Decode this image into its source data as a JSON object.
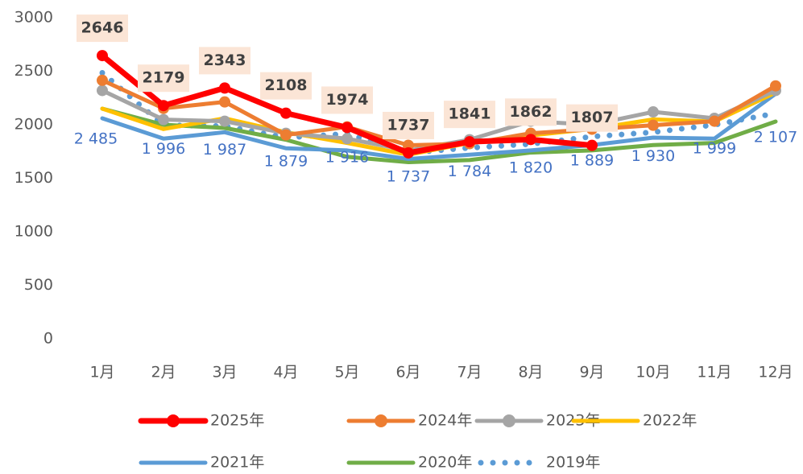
{
  "chart_data": {
    "type": "line",
    "categories": [
      "1月",
      "2月",
      "3月",
      "4月",
      "5月",
      "6月",
      "7月",
      "8月",
      "9月",
      "10月",
      "11月",
      "12月"
    ],
    "ylim": [
      0,
      3000
    ],
    "yticks": [
      0,
      500,
      1000,
      1500,
      2000,
      2500,
      3000
    ],
    "grid": false,
    "legend": "bottom",
    "series": [
      {
        "name": "2025年",
        "color": "#ff0000",
        "marker": true,
        "values": [
          2646,
          2179,
          2343,
          2108,
          1974,
          1737,
          1841,
          1862,
          1807,
          null,
          null,
          null
        ]
      },
      {
        "name": "2024年",
        "color": "#ed7d31",
        "marker": true,
        "values": [
          2415,
          2153,
          2213,
          1905,
          1980,
          1808,
          1823,
          1920,
          1958,
          1995,
          2033,
          2363
        ]
      },
      {
        "name": "2023年",
        "color": "#a5a5a5",
        "marker": true,
        "values": [
          2320,
          2048,
          2033,
          1920,
          1870,
          1760,
          1860,
          2033,
          2000,
          2120,
          2060,
          2320
        ]
      },
      {
        "name": "2022年",
        "color": "#ffc000",
        "marker": false,
        "values": [
          2150,
          1960,
          2060,
          1930,
          1830,
          1720,
          1830,
          1900,
          1960,
          2050,
          2030,
          2300
        ]
      },
      {
        "name": "2021年",
        "color": "#5b9bd5",
        "marker": false,
        "values": [
          2060,
          1870,
          1930,
          1780,
          1760,
          1680,
          1720,
          1760,
          1810,
          1880,
          1870,
          2290
        ]
      },
      {
        "name": "2020年",
        "color": "#70ad47",
        "marker": false,
        "values": [
          2150,
          2000,
          1970,
          1860,
          1700,
          1650,
          1670,
          1740,
          1760,
          1810,
          1830,
          2030
        ]
      },
      {
        "name": "2019年",
        "color": "#5b9bd5",
        "marker": false,
        "dash": "dot",
        "values": [
          2485,
          1996,
          1987,
          1879,
          1916,
          1737,
          1784,
          1820,
          1889,
          1930,
          1999,
          2107
        ],
        "value_labels": [
          "2 485",
          "1 996",
          "1 987",
          "1 879",
          "1 916",
          "1 737",
          "1 784",
          "1 820",
          "1 889",
          "1 930",
          "1 999",
          "2 107"
        ]
      }
    ]
  }
}
